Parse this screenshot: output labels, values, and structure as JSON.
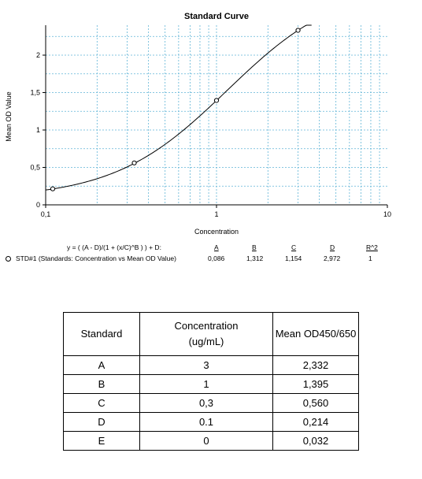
{
  "chart_data": {
    "type": "scatter",
    "title": "Standard Curve",
    "xlabel": "Concentration",
    "ylabel": "Mean OD Value",
    "x_scale": "log",
    "xlim": [
      0.1,
      10
    ],
    "ylim": [
      0,
      2.4
    ],
    "x_ticks": [
      "0,1",
      "1",
      "10"
    ],
    "y_ticks": [
      "0",
      "0,5",
      "1",
      "1,5",
      "2"
    ],
    "grid": true,
    "series": [
      {
        "name": "STD#1 (Standards: Concentration vs Mean OD Value)",
        "x": [
          0.11,
          0.33,
          1,
          3
        ],
        "y": [
          0.214,
          0.56,
          1.395,
          2.332
        ]
      }
    ],
    "fit": {
      "equation": "y = ( (A - D)/(1 + (x/C)^B ) ) + D:",
      "headers": [
        "A",
        "B",
        "C",
        "D",
        "R^2"
      ],
      "values": [
        "0,086",
        "1,312",
        "1,154",
        "2,972",
        "1"
      ],
      "params": {
        "A": 0.086,
        "B": 1.312,
        "C": 1.154,
        "D": 2.972
      }
    }
  },
  "table": {
    "headers": [
      "Standard",
      "Concentration (ug/mL)",
      "Mean OD450/650"
    ],
    "rows": [
      [
        "A",
        "3",
        "2,332"
      ],
      [
        "B",
        "1",
        "1,395"
      ],
      [
        "C",
        "0,3",
        "0,560"
      ],
      [
        "D",
        "0.1",
        "0,214"
      ],
      [
        "E",
        "0",
        "0,032"
      ]
    ]
  }
}
